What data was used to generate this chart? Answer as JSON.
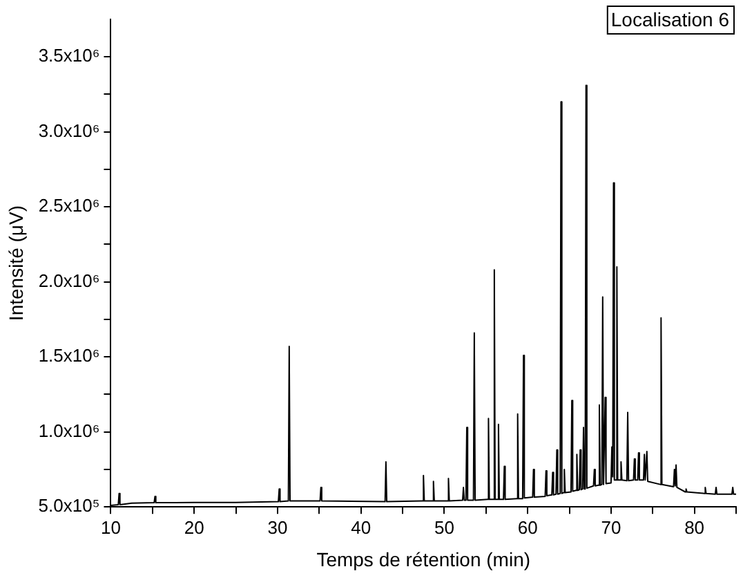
{
  "chart_data": {
    "type": "line",
    "xlabel": "Temps de rétention (min)",
    "ylabel": "Intensité (μV)",
    "annotations": [
      "Localisation 6"
    ],
    "xlim": [
      10,
      85
    ],
    "xticks": [
      10,
      {
        "value": 15,
        "label": null
      },
      20,
      {
        "value": 25,
        "label": null
      },
      30,
      {
        "value": 35,
        "label": null
      },
      40,
      {
        "value": 45,
        "label": null
      },
      50,
      {
        "value": 55,
        "label": null
      },
      60,
      {
        "value": 65,
        "label": null
      },
      70,
      {
        "value": 75,
        "label": null
      },
      80,
      {
        "value": 85,
        "label": null
      }
    ],
    "ylim": [
      500000,
      3750000
    ],
    "yticks": [
      {
        "value": 500000,
        "label": "5.0x10⁵"
      },
      {
        "value": 750000,
        "label": null
      },
      {
        "value": 1000000,
        "label": "1.0x10⁶"
      },
      {
        "value": 1250000,
        "label": null
      },
      {
        "value": 1500000,
        "label": "1.5x10⁶"
      },
      {
        "value": 1750000,
        "label": null
      },
      {
        "value": 2000000,
        "label": "2.0x10⁶"
      },
      {
        "value": 2250000,
        "label": null
      },
      {
        "value": 2500000,
        "label": "2.5x10⁶"
      },
      {
        "value": 2750000,
        "label": null
      },
      {
        "value": 3000000,
        "label": "3.0x10⁶"
      },
      {
        "value": 3250000,
        "label": null
      },
      {
        "value": 3500000,
        "label": "3.5x10⁶"
      }
    ],
    "grid": false,
    "legend": false,
    "marker": "none",
    "line_style": "solid",
    "series": [
      {
        "color": "#000000",
        "x": [
          10,
          10.9,
          11,
          11.1,
          12.5,
          15.2,
          15.3,
          15.4,
          20,
          25,
          30.1,
          30.2,
          30.3,
          31.3,
          31.4,
          31.5,
          35.1,
          35.2,
          35.3,
          42.9,
          43,
          43.1,
          47.4,
          47.5,
          47.6,
          48.6,
          48.7,
          48.8,
          50.4,
          50.5,
          50.6,
          52.2,
          52.3,
          52.4,
          52.6,
          52.7,
          52.8,
          53.5,
          53.6,
          53.7,
          55.2,
          55.3,
          55.4,
          55.9,
          56,
          56.1,
          56.4,
          56.5,
          56.6,
          57.1,
          57.2,
          57.3,
          58.7,
          58.8,
          58.9,
          59.4,
          59.5,
          59.6,
          60.6,
          60.7,
          60.8,
          62.1,
          62.2,
          62.3,
          62.9,
          63,
          63.1,
          63.4,
          63.5,
          63.6,
          63.9,
          64,
          64.1,
          64.3,
          64.4,
          64.5,
          65.2,
          65.3,
          65.4,
          65.8,
          65.9,
          66,
          66.2,
          66.3,
          66.4,
          66.6,
          66.7,
          66.8,
          66.9,
          67,
          67.1,
          67.9,
          68,
          68.1,
          68.5,
          68.6,
          68.7,
          68.9,
          69,
          69.1,
          69.2,
          69.3,
          69.4,
          70,
          70.1,
          70.2,
          70.3,
          70.4,
          70.6,
          70.7,
          70.8,
          71.1,
          71.2,
          71.3,
          71.9,
          72,
          72.1,
          72.7,
          72.8,
          72.9,
          73.2,
          73.3,
          73.4,
          73.9,
          74,
          74.1,
          74.2,
          74.3,
          74.4,
          75.9,
          76,
          76.1,
          77.5,
          77.6,
          77.7,
          77.8,
          77.9,
          78.9,
          79,
          79.1,
          81.2,
          81.3,
          81.4,
          82.5,
          82.6,
          82.7,
          84.5,
          84.6,
          84.7,
          85
        ],
        "values": [
          510000,
          515000,
          590000,
          515000,
          525000,
          528000,
          570000,
          528000,
          530000,
          530000,
          535000,
          620000,
          535000,
          540000,
          1570000,
          540000,
          540000,
          630000,
          540000,
          535000,
          800000,
          535000,
          540000,
          710000,
          540000,
          540000,
          670000,
          540000,
          540000,
          690000,
          540000,
          545000,
          630000,
          545000,
          545000,
          1030000,
          545000,
          545000,
          1660000,
          545000,
          550000,
          1090000,
          550000,
          550000,
          2080000,
          550000,
          550000,
          1050000,
          550000,
          550000,
          770000,
          550000,
          555000,
          1120000,
          555000,
          555000,
          1510000,
          560000,
          565000,
          750000,
          565000,
          570000,
          740000,
          575000,
          580000,
          730000,
          580000,
          585000,
          880000,
          585000,
          590000,
          3200000,
          590000,
          595000,
          750000,
          595000,
          600000,
          1210000,
          605000,
          610000,
          850000,
          610000,
          615000,
          880000,
          615000,
          620000,
          1030000,
          620000,
          625000,
          3310000,
          625000,
          640000,
          750000,
          640000,
          645000,
          1180000,
          645000,
          650000,
          1900000,
          650000,
          650000,
          1230000,
          655000,
          660000,
          900000,
          700000,
          2660000,
          680000,
          680000,
          2100000,
          680000,
          680000,
          800000,
          680000,
          675000,
          1130000,
          675000,
          680000,
          820000,
          680000,
          680000,
          860000,
          680000,
          680000,
          850000,
          680000,
          680000,
          870000,
          670000,
          650000,
          1760000,
          650000,
          635000,
          750000,
          640000,
          780000,
          630000,
          600000,
          620000,
          600000,
          590000,
          630000,
          590000,
          585000,
          630000,
          585000,
          585000,
          630000,
          585000,
          585000
        ]
      }
    ]
  }
}
